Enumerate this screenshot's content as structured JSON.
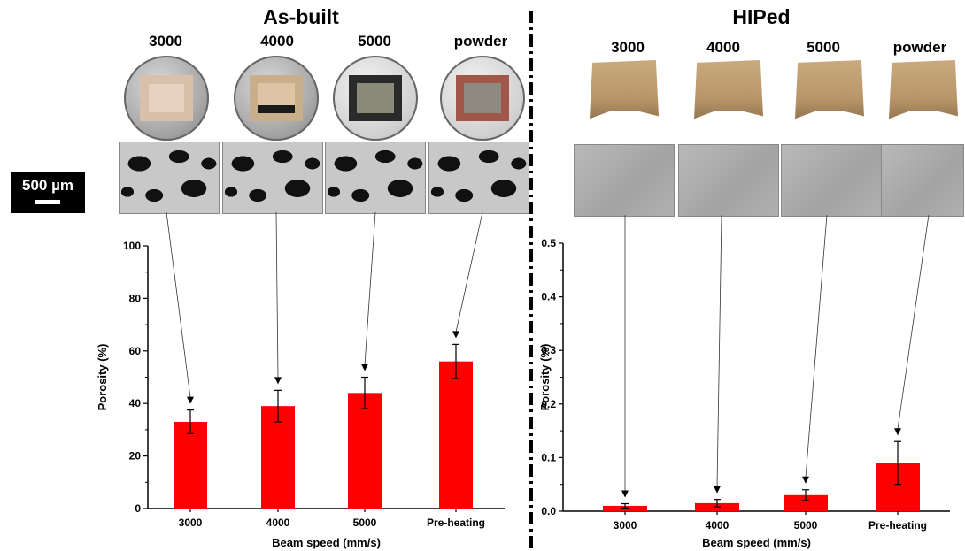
{
  "left_panel": {
    "title": "As-built",
    "samples": [
      "3000",
      "4000",
      "5000",
      "powder"
    ]
  },
  "right_panel": {
    "title": "HIPed",
    "samples": [
      "3000",
      "4000",
      "5000",
      "powder"
    ]
  },
  "scale_bar": {
    "label": "500 µm"
  },
  "chart_data": [
    {
      "type": "bar",
      "categories": [
        "3000",
        "4000",
        "5000",
        "Pre-heating"
      ],
      "values": [
        33,
        39,
        44,
        56
      ],
      "errors": [
        4.5,
        6,
        6,
        6.5
      ],
      "xlabel": "Beam speed (mm/s)",
      "ylabel": "Porosity (%)",
      "ylim": [
        0,
        100
      ],
      "yticks": [
        0,
        20,
        40,
        60,
        80,
        100
      ],
      "ytick_labels": [
        "0",
        "20",
        "40",
        "60",
        "80",
        "100"
      ],
      "bar_color": "#ff0000",
      "grid": false
    },
    {
      "type": "bar",
      "categories": [
        "3000",
        "4000",
        "5000",
        "Pre-heating"
      ],
      "values": [
        0.01,
        0.015,
        0.03,
        0.09
      ],
      "errors": [
        0.004,
        0.007,
        0.01,
        0.04
      ],
      "xlabel": "Beam speed (mm/s)",
      "ylabel": "Porosity (%)",
      "ylim": [
        0,
        0.5
      ],
      "yticks": [
        0,
        0.1,
        0.2,
        0.3,
        0.4,
        0.5
      ],
      "ytick_labels": [
        "0.0",
        "0.1",
        "0.2",
        "0.3",
        "0.4",
        "0.5"
      ],
      "bar_color": "#ff0000",
      "grid": false
    }
  ]
}
